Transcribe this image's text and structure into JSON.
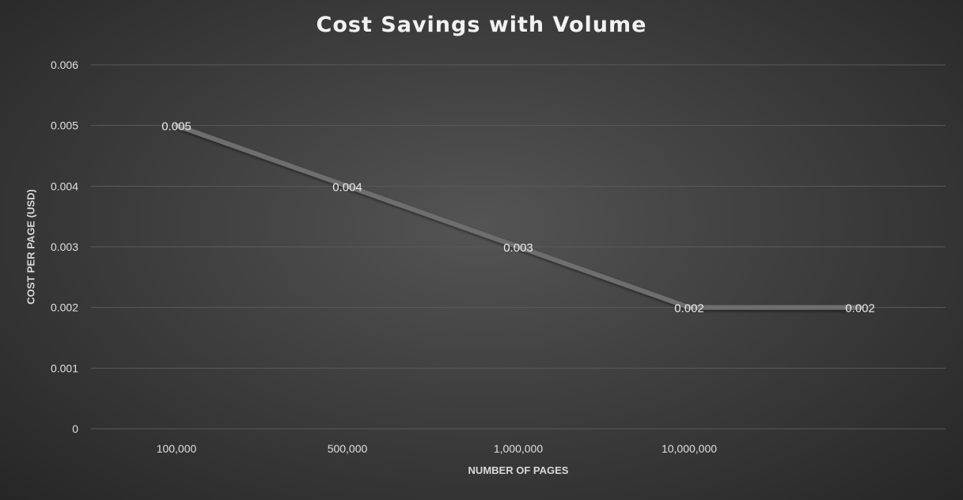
{
  "chart_data": {
    "type": "line",
    "title": "Cost Savings with Volume",
    "xlabel": "NUMBER OF PAGES",
    "ylabel": "COST PER PAGE (USD)",
    "categories": [
      "100,000",
      "500,000",
      "1,000,000",
      "10,000,000",
      ""
    ],
    "values": [
      0.005,
      0.004,
      0.003,
      0.002,
      0.002
    ],
    "data_labels": [
      "0.005",
      "0.004",
      "0.003",
      "0.002",
      "0.002"
    ],
    "y_ticks": [
      "0",
      "0.001",
      "0.002",
      "0.003",
      "0.004",
      "0.005",
      "0.006"
    ],
    "ylim": [
      0,
      0.006
    ],
    "grid": true,
    "legend": "none",
    "colors": {
      "line": "#6e6e6e",
      "gridline": "#5a5a5a",
      "text": "#e0e0e0"
    }
  }
}
